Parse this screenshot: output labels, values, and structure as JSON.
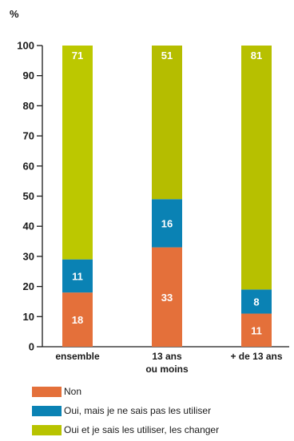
{
  "chart_data": {
    "type": "bar",
    "stacked": true,
    "ylabel": "%",
    "ylim": [
      0,
      100
    ],
    "yticks": [
      0,
      10,
      20,
      30,
      40,
      50,
      60,
      70,
      80,
      90,
      100
    ],
    "categories": [
      [
        "ensemble"
      ],
      [
        "13 ans",
        "ou moins"
      ],
      [
        "+ de 13 ans"
      ]
    ],
    "series": [
      {
        "name": "Non",
        "values": [
          18,
          33,
          11
        ],
        "color": "#e4703a"
      },
      {
        "name": "Oui, mais je ne sais pas les utiliser",
        "values": [
          11,
          16,
          8
        ],
        "color": "#0a82b4"
      },
      {
        "name": "Oui et je sais les utiliser, les changer",
        "values": [
          71,
          51,
          81
        ],
        "color": "#b8c300"
      }
    ],
    "top_series_colors": [
      "#bcc800",
      "#b5bd00",
      "#b7c000"
    ],
    "legend_position": "bottom"
  }
}
